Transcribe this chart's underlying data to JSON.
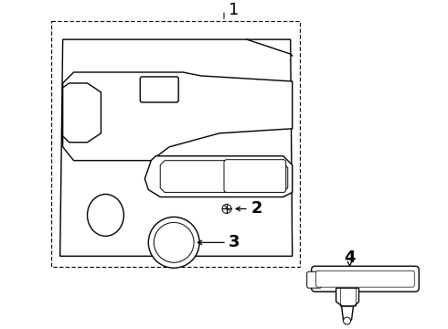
{
  "background_color": "#ffffff",
  "line_color": "#000000",
  "label_1": "1",
  "label_2": "2",
  "label_3": "3",
  "label_4": "4",
  "font_size_labels": 13
}
